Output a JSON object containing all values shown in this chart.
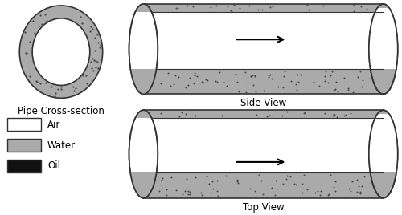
{
  "bg_color": "#ffffff",
  "water_color": "#aaaaaa",
  "oil_color": "#222222",
  "air_color": "#ffffff",
  "dot_color": "#444444",
  "outline_color": "#333333",
  "cross_section_label": "Pipe Cross-section",
  "side_view_label": "Side View",
  "top_view_label": "Top View",
  "legend_labels": [
    "Air",
    "Water",
    "Oil"
  ],
  "legend_colors": [
    "#ffffff",
    "#aaaaaa",
    "#111111"
  ]
}
